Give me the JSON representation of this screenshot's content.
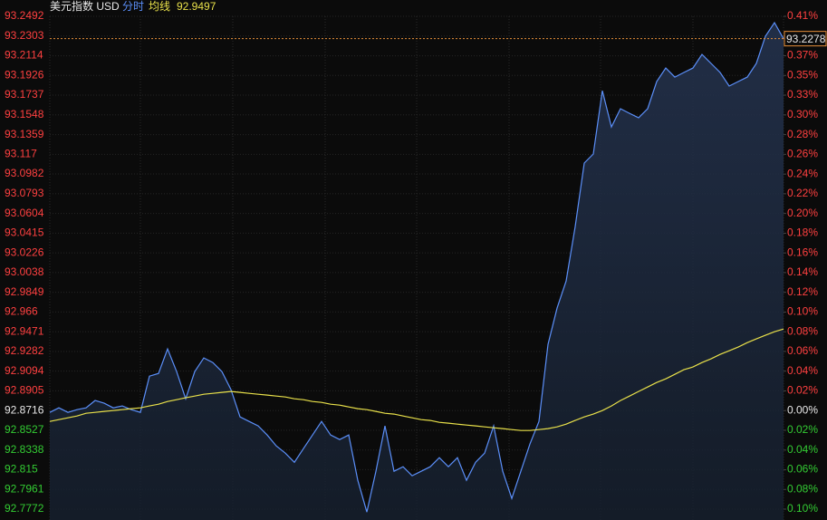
{
  "chart_data": {
    "type": "line",
    "title": "美元指数 USD",
    "series": [
      {
        "name": "分时",
        "color": "#5b8ff9",
        "values": [
          92.8699,
          92.8742,
          92.8699,
          92.8725,
          92.8742,
          92.8812,
          92.8786,
          92.8742,
          92.876,
          92.8725,
          92.8699,
          92.9046,
          92.9072,
          92.9306,
          92.9089,
          92.8829,
          92.9089,
          92.922,
          92.9176,
          92.9089,
          92.8916,
          92.8655,
          92.8612,
          92.8569,
          92.8482,
          92.8378,
          92.8308,
          92.8221,
          92.8352,
          92.8482,
          92.8612,
          92.8482,
          92.8438,
          92.8482,
          92.8048,
          92.7744,
          92.8135,
          92.8569,
          92.8135,
          92.8178,
          92.8091,
          92.8135,
          92.8178,
          92.8265,
          92.8178,
          92.8265,
          92.8048,
          92.8221,
          92.8308,
          92.8569,
          92.8135,
          92.7874,
          92.8135,
          92.8395,
          92.8612,
          92.935,
          92.9697,
          92.9957,
          93.0478,
          93.1086,
          93.1173,
          93.178,
          93.1433,
          93.1607,
          93.1563,
          93.152,
          93.1607,
          93.1867,
          93.1997,
          93.191,
          93.1954,
          93.1997,
          93.2127,
          93.2041,
          93.1954,
          93.1824,
          93.1867,
          93.191,
          93.2041,
          93.2301,
          93.2431,
          93.2278
        ]
      },
      {
        "name": "均线",
        "color": "#e8e04a",
        "values": [
          92.8612,
          92.8629,
          92.8647,
          92.8664,
          92.869,
          92.8699,
          92.8708,
          92.8716,
          92.8725,
          92.8734,
          92.8742,
          92.876,
          92.8777,
          92.8803,
          92.882,
          92.8838,
          92.8855,
          92.8872,
          92.8881,
          92.889,
          92.8899,
          92.889,
          92.8881,
          92.8872,
          92.8864,
          92.8855,
          92.8846,
          92.8829,
          92.882,
          92.8803,
          92.8794,
          92.8777,
          92.8768,
          92.8751,
          92.8734,
          92.8725,
          92.8708,
          92.869,
          92.8682,
          92.8664,
          92.8647,
          92.8629,
          92.8621,
          92.8603,
          92.8595,
          92.8586,
          92.8577,
          92.8569,
          92.856,
          92.8551,
          92.8543,
          92.8534,
          92.8525,
          92.8525,
          92.8534,
          92.8543,
          92.856,
          92.8586,
          92.8621,
          92.8655,
          92.8682,
          92.8716,
          92.876,
          92.8812,
          92.8855,
          92.8899,
          92.8942,
          92.8985,
          92.902,
          92.9063,
          92.9107,
          92.9133,
          92.9176,
          92.9211,
          92.9254,
          92.9289,
          92.9324,
          92.9367,
          92.9402,
          92.9437,
          92.9471,
          92.9497
        ]
      }
    ],
    "ylim": [
      92.7772,
      93.2492
    ],
    "yticks": [
      93.2492,
      93.2303,
      93.2114,
      93.1926,
      93.1737,
      93.1548,
      93.1359,
      93.117,
      93.0982,
      93.0793,
      93.0604,
      93.0415,
      93.0226,
      93.0038,
      92.9849,
      92.966,
      92.9471,
      92.9282,
      92.9094,
      92.8905,
      92.8716,
      92.8527,
      92.8338,
      92.815,
      92.7961,
      92.7772
    ],
    "y2lim": [
      -0.1016,
      0.4066
    ],
    "y2ticks": [
      {
        "value": 0.4066,
        "label": "0.41%"
      },
      {
        "value": 0.3863,
        "label": "0.39%"
      },
      {
        "value": 0.3659,
        "label": "0.37%"
      },
      {
        "value": 0.3456,
        "label": "0.35%"
      },
      {
        "value": 0.3253,
        "label": "0.33%"
      },
      {
        "value": 0.3049,
        "label": "0.30%"
      },
      {
        "value": 0.2846,
        "label": "0.28%"
      },
      {
        "value": 0.2643,
        "label": "0.26%"
      },
      {
        "value": 0.2439,
        "label": "0.24%"
      },
      {
        "value": 0.2236,
        "label": "0.22%"
      },
      {
        "value": 0.2033,
        "label": "0.20%"
      },
      {
        "value": 0.1829,
        "label": "0.18%"
      },
      {
        "value": 0.1626,
        "label": "0.16%"
      },
      {
        "value": 0.1423,
        "label": "0.14%"
      },
      {
        "value": 0.122,
        "label": "0.12%"
      },
      {
        "value": 0.1016,
        "label": "0.10%"
      },
      {
        "value": 0.0813,
        "label": "0.08%"
      },
      {
        "value": 0.061,
        "label": "0.06%"
      },
      {
        "value": 0.0407,
        "label": "0.04%"
      },
      {
        "value": 0.0203,
        "label": "0.02%"
      },
      {
        "value": 0,
        "label": "0.00%"
      },
      {
        "value": -0.0203,
        "label": "0.02%"
      },
      {
        "value": -0.0407,
        "label": "0.04%"
      },
      {
        "value": -0.061,
        "label": "0.06%"
      },
      {
        "value": -0.0813,
        "label": "0.08%"
      },
      {
        "value": -0.1016,
        "label": "0.10%"
      }
    ],
    "grid": true,
    "up_color": "#ff4040",
    "down_color": "#33cc33",
    "flat_color": "#e8e8e8"
  }
}
